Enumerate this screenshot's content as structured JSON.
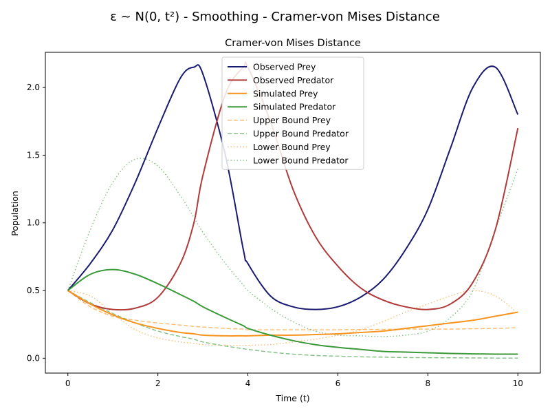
{
  "suptitle": "ε ~ N(0, t²) - Smoothing - Cramer-von Mises Distance",
  "chart_data": {
    "type": "line",
    "title": "Cramer-von Mises Distance",
    "xlabel": "Time (t)",
    "ylabel": "Population",
    "xlim": [
      -0.5,
      10.5
    ],
    "ylim": [
      -0.11,
      2.26
    ],
    "xticks": [
      "0",
      "2",
      "4",
      "6",
      "8",
      "10"
    ],
    "yticks": [
      "0.0",
      "0.5",
      "1.0",
      "1.5",
      "2.0"
    ],
    "grid": false,
    "legend_position": "upper-center",
    "x": [
      0,
      0.5,
      1,
      1.5,
      2,
      2.5,
      2.8,
      3,
      3.5,
      3.9,
      4,
      4.5,
      5,
      5.5,
      6,
      6.5,
      7,
      7.5,
      8,
      8.5,
      9,
      9.5,
      10
    ],
    "series": [
      {
        "name": "Observed Prey",
        "color": "#191970",
        "style": "solid",
        "values": [
          0.5,
          0.7,
          0.95,
          1.3,
          1.7,
          2.07,
          2.15,
          2.1,
          1.5,
          0.8,
          0.7,
          0.46,
          0.38,
          0.36,
          0.38,
          0.45,
          0.58,
          0.8,
          1.1,
          1.55,
          2.0,
          2.15,
          1.8
        ]
      },
      {
        "name": "Observed Predator",
        "color": "#b03a3a",
        "style": "solid",
        "values": [
          0.5,
          0.4,
          0.36,
          0.37,
          0.45,
          0.7,
          1.0,
          1.35,
          1.95,
          2.15,
          2.15,
          1.75,
          1.25,
          0.9,
          0.68,
          0.52,
          0.43,
          0.38,
          0.36,
          0.4,
          0.56,
          0.95,
          1.7
        ]
      },
      {
        "name": "Simulated Prey",
        "color": "#f7941d",
        "style": "solid",
        "values": [
          0.5,
          0.4,
          0.32,
          0.26,
          0.22,
          0.19,
          0.18,
          0.17,
          0.165,
          0.165,
          0.165,
          0.17,
          0.17,
          0.175,
          0.18,
          0.19,
          0.2,
          0.22,
          0.24,
          0.26,
          0.28,
          0.31,
          0.34
        ]
      },
      {
        "name": "Simulated Predator",
        "color": "#3a9a3a",
        "style": "solid",
        "values": [
          0.5,
          0.62,
          0.655,
          0.62,
          0.55,
          0.47,
          0.42,
          0.38,
          0.3,
          0.24,
          0.22,
          0.17,
          0.13,
          0.1,
          0.08,
          0.065,
          0.05,
          0.045,
          0.04,
          0.035,
          0.032,
          0.03,
          0.03
        ]
      },
      {
        "name": "Upper Bound Prey",
        "color": "#f7941d",
        "style": "dashed",
        "values": [
          0.5,
          0.38,
          0.31,
          0.28,
          0.26,
          0.245,
          0.235,
          0.23,
          0.22,
          0.215,
          0.21,
          0.21,
          0.21,
          0.21,
          0.21,
          0.212,
          0.213,
          0.215,
          0.215,
          0.215,
          0.218,
          0.22,
          0.225
        ]
      },
      {
        "name": "Upper Bound Predator",
        "color": "#3a9a3a",
        "style": "dashed",
        "values": [
          0.5,
          0.41,
          0.33,
          0.26,
          0.2,
          0.16,
          0.14,
          0.12,
          0.09,
          0.07,
          0.065,
          0.045,
          0.03,
          0.02,
          0.015,
          0.01,
          0.008,
          0.005,
          0.004,
          0.003,
          0.002,
          0.001,
          0.001
        ]
      },
      {
        "name": "Lower Bound Prey",
        "color": "#f7941d",
        "style": "dotted",
        "values": [
          0.5,
          0.46,
          0.33,
          0.21,
          0.15,
          0.12,
          0.11,
          0.1,
          0.095,
          0.095,
          0.095,
          0.1,
          0.12,
          0.14,
          0.17,
          0.21,
          0.27,
          0.34,
          0.4,
          0.46,
          0.5,
          0.46,
          0.33
        ]
      },
      {
        "name": "Lower Bound Predator",
        "color": "#3a9a3a",
        "style": "dotted",
        "values": [
          0.5,
          0.95,
          1.3,
          1.47,
          1.42,
          1.2,
          1.04,
          0.93,
          0.7,
          0.54,
          0.5,
          0.37,
          0.27,
          0.2,
          0.17,
          0.165,
          0.16,
          0.17,
          0.2,
          0.3,
          0.5,
          0.95,
          1.4
        ]
      }
    ]
  }
}
